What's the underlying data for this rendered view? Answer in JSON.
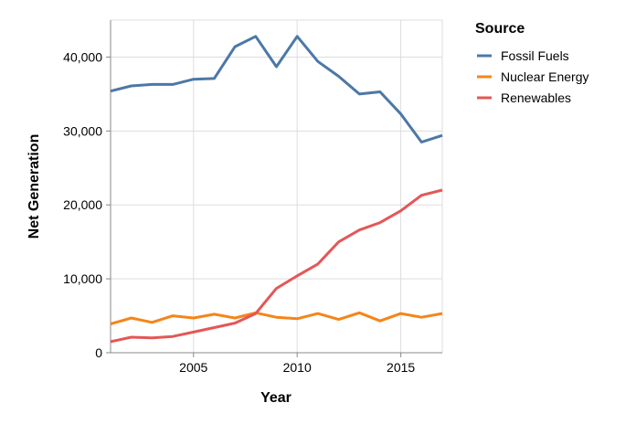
{
  "chart_data": {
    "type": "line",
    "xlabel": "Year",
    "ylabel": "Net Generation",
    "x": [
      2001,
      2002,
      2003,
      2004,
      2005,
      2006,
      2007,
      2008,
      2009,
      2010,
      2011,
      2012,
      2013,
      2014,
      2015,
      2016,
      2017
    ],
    "xlim": [
      2001,
      2017
    ],
    "ylim": [
      0,
      45000
    ],
    "x_ticks": [
      2005,
      2010,
      2015
    ],
    "x_tick_labels": [
      "2005",
      "2010",
      "2015"
    ],
    "y_ticks": [
      0,
      10000,
      20000,
      30000,
      40000
    ],
    "y_tick_labels": [
      "0",
      "10,000",
      "20,000",
      "30,000",
      "40,000"
    ],
    "grid": true,
    "legend": {
      "title": "Source",
      "placement": "right"
    },
    "series": [
      {
        "name": "Fossil Fuels",
        "color": "#4c78a8",
        "values": [
          35400,
          36100,
          36300,
          36300,
          37000,
          37100,
          41400,
          42800,
          38700,
          42800,
          39400,
          37400,
          35000,
          35300,
          32300,
          28500,
          29400
        ]
      },
      {
        "name": "Nuclear Energy",
        "color": "#f58518",
        "values": [
          3900,
          4700,
          4100,
          5000,
          4700,
          5200,
          4700,
          5400,
          4800,
          4600,
          5300,
          4500,
          5400,
          4300,
          5300,
          4800,
          5300
        ]
      },
      {
        "name": "Renewables",
        "color": "#e45756",
        "values": [
          1500,
          2100,
          2000,
          2200,
          2800,
          3400,
          4000,
          5300,
          8700,
          10400,
          12000,
          15000,
          16600,
          17600,
          19200,
          21300,
          22000
        ]
      }
    ]
  }
}
